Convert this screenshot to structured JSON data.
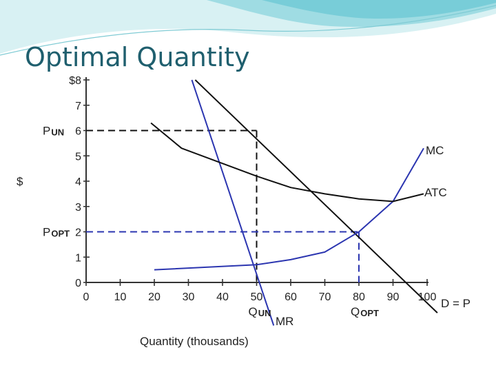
{
  "slide": {
    "title": "Optimal Quantity"
  },
  "colors": {
    "title": "#1f5f6e",
    "blue": "#2b35b0",
    "black": "#111111",
    "banner": "#bfe8ec"
  },
  "chart_data": {
    "type": "line",
    "title": "",
    "xlabel": "Quantity (thousands)",
    "ylabel": "$",
    "xlim": [
      0,
      100
    ],
    "ylim": [
      0,
      8
    ],
    "x_ticks": [
      "0",
      "10",
      "20",
      "30",
      "40",
      "50",
      "60",
      "70",
      "80",
      "90",
      "100"
    ],
    "y_ticks": [
      "0",
      "1",
      "2",
      "3",
      "4",
      "5",
      "6",
      "7",
      "$8"
    ],
    "grid": false,
    "series": [
      {
        "name": "D = P",
        "color": "#111111",
        "x": [
          32,
          103
        ],
        "y": [
          8.0,
          -1.2
        ]
      },
      {
        "name": "MR",
        "color": "#2b35b0",
        "x": [
          31,
          55
        ],
        "y": [
          8.0,
          -1.7
        ]
      },
      {
        "name": "MC",
        "color": "#2b35b0",
        "x": [
          20,
          50,
          60,
          70,
          80,
          90,
          99
        ],
        "y": [
          0.5,
          0.7,
          0.9,
          1.2,
          2.0,
          3.2,
          5.3
        ]
      },
      {
        "name": "ATC",
        "color": "#111111",
        "x": [
          19,
          28,
          50,
          60,
          70,
          80,
          90,
          99
        ],
        "y": [
          6.3,
          5.3,
          4.2,
          3.75,
          3.5,
          3.3,
          3.2,
          3.5
        ]
      }
    ],
    "annotations": [
      {
        "id": "pun",
        "label": "P",
        "sub": "UN",
        "y": 6
      },
      {
        "id": "popt",
        "label": "P",
        "sub": "OPT",
        "y": 2
      },
      {
        "id": "qun",
        "label": "Q",
        "sub": "UN",
        "x": 50
      },
      {
        "id": "qopt",
        "label": "Q",
        "sub": "OPT",
        "x": 80
      }
    ],
    "guides": [
      {
        "color": "#111111",
        "x": 50,
        "y": 6
      },
      {
        "color": "#2b35b0",
        "x": 80,
        "y": 2
      }
    ]
  }
}
